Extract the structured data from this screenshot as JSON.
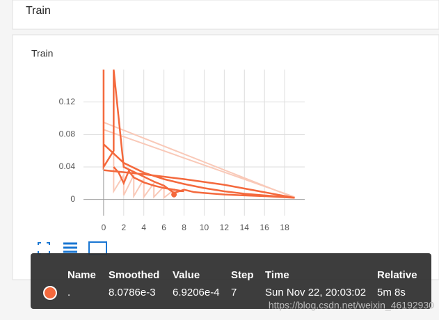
{
  "header": {
    "title": "Train"
  },
  "chart_data": {
    "type": "line",
    "title": "Train",
    "xlim": [
      -2,
      20
    ],
    "ylim": [
      -0.02,
      0.16
    ],
    "xticks": [
      0,
      2,
      4,
      6,
      8,
      10,
      12,
      14,
      16,
      18
    ],
    "yticks": [
      0,
      0.04,
      0.08,
      0.12
    ],
    "grid": true,
    "series": [
      {
        "color": "#f9c9b8",
        "x": [
          0,
          19,
          null,
          0,
          19,
          null,
          1,
          1,
          2,
          2,
          3,
          3,
          4,
          4,
          5,
          5,
          6,
          6,
          7,
          7
        ],
        "values": [
          0.095,
          0.002,
          null,
          0.086,
          0.003,
          null,
          0.16,
          0.01,
          0.03,
          0.005,
          0.03,
          0.004,
          0.025,
          0.003,
          0.02,
          0.003,
          0.016,
          0.002,
          0.012,
          0.002
        ]
      },
      {
        "color": "#f4693d",
        "x": [
          0,
          0,
          1,
          1,
          2,
          3,
          4,
          5,
          6,
          7,
          8,
          9,
          10,
          12,
          14,
          16,
          19,
          null,
          0,
          2,
          4,
          6,
          8,
          10,
          12,
          14,
          16,
          19,
          null,
          0,
          4,
          8,
          12,
          19,
          null,
          1,
          1.5,
          2,
          2.5,
          3,
          4,
          5,
          6,
          7,
          8
        ],
        "values": [
          0.16,
          0.04,
          0.06,
          0.16,
          0.04,
          0.034,
          0.028,
          0.022,
          0.017,
          0.008,
          0.012,
          0.009,
          0.008,
          0.006,
          0.005,
          0.004,
          0.002,
          null,
          0.068,
          0.045,
          0.033,
          0.025,
          0.019,
          0.014,
          0.01,
          0.007,
          0.005,
          0.002,
          null,
          0.036,
          0.031,
          0.025,
          0.018,
          0.002,
          null,
          0.04,
          0.033,
          0.02,
          0.035,
          0.027,
          0.021,
          0.017,
          0.014,
          0.012,
          0.01
        ]
      }
    ],
    "highlight": {
      "x": 7,
      "y": 0.006
    }
  },
  "tooltip": {
    "columns": [
      "Name",
      "Smoothed",
      "Value",
      "Step",
      "Time",
      "Relative"
    ],
    "row": [
      ".",
      "8.0786e-3",
      "6.9206e-4",
      "7",
      "Sun Nov 22, 20:03:02",
      "5m 8s"
    ]
  },
  "watermark": "https://blog.csdn.net/weixin_46192930"
}
